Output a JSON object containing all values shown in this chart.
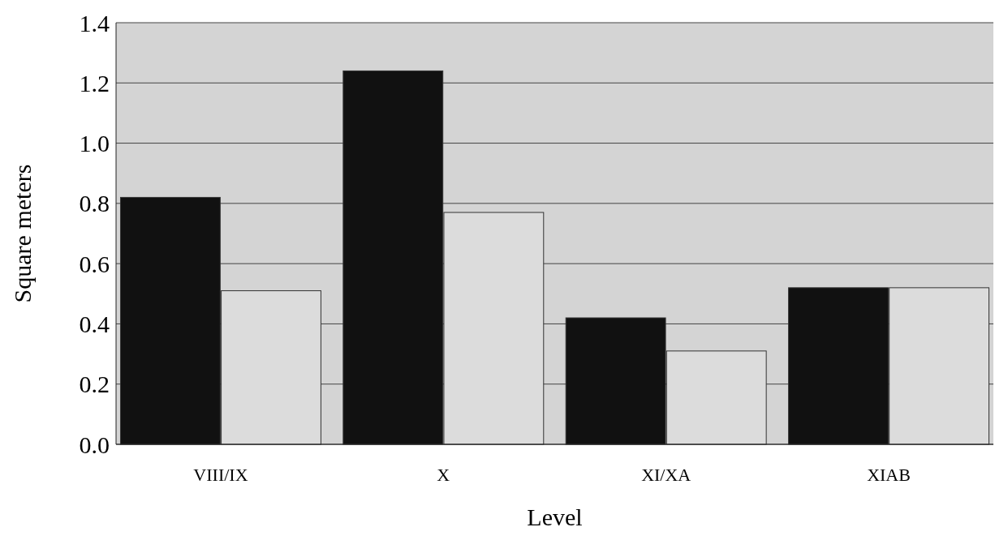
{
  "chart_data": {
    "type": "bar",
    "xlabel": "Level",
    "ylabel": "Square meters",
    "categories": [
      "VIII/IX",
      "X",
      "XI/XA",
      "XIAB"
    ],
    "series": [
      {
        "color": "#111111",
        "values": [
          0.82,
          1.24,
          0.42,
          0.52
        ]
      },
      {
        "color": "#dcdcdc",
        "values": [
          0.51,
          0.77,
          0.31,
          0.52
        ]
      }
    ],
    "ylim": [
      0,
      1.4
    ],
    "yticks": [
      {
        "value": 0,
        "label": "0.0"
      },
      0.2,
      0.4,
      0.6,
      0.8,
      {
        "value": 1,
        "label": "1.0"
      },
      1.2,
      1.4
    ],
    "grid": "y"
  }
}
